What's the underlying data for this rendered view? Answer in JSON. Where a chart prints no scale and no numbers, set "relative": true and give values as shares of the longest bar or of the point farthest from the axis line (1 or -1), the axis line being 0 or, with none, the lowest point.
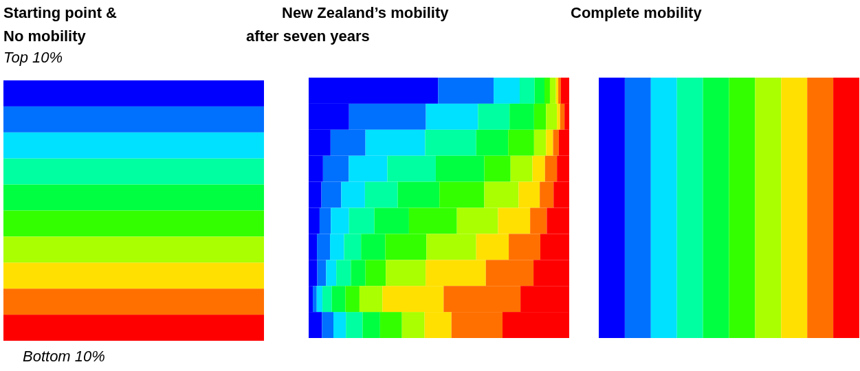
{
  "chart_data": [
    {
      "type": "bar",
      "title": "Starting point &\nNo mobility",
      "orientation": "horizontal",
      "stacked": true,
      "relative": true,
      "categories": [
        null,
        null,
        null,
        null,
        null,
        null,
        null,
        null,
        null,
        null
      ],
      "annotations": [
        "Top 10%",
        "Bottom 10%"
      ],
      "series": [
        {
          "color": "#0000ff",
          "values": [
            1,
            0,
            0,
            0,
            0,
            0,
            0,
            0,
            0,
            0
          ]
        },
        {
          "color": "#0070ff",
          "values": [
            0,
            1,
            0,
            0,
            0,
            0,
            0,
            0,
            0,
            0
          ]
        },
        {
          "color": "#00e0ff",
          "values": [
            0,
            0,
            1,
            0,
            0,
            0,
            0,
            0,
            0,
            0
          ]
        },
        {
          "color": "#00ffa0",
          "values": [
            0,
            0,
            0,
            1,
            0,
            0,
            0,
            0,
            0,
            0
          ]
        },
        {
          "color": "#00ff40",
          "values": [
            0,
            0,
            0,
            0,
            1,
            0,
            0,
            0,
            0,
            0
          ]
        },
        {
          "color": "#33ff00",
          "values": [
            0,
            0,
            0,
            0,
            0,
            1,
            0,
            0,
            0,
            0
          ]
        },
        {
          "color": "#aaff00",
          "values": [
            0,
            0,
            0,
            0,
            0,
            0,
            1,
            0,
            0,
            0
          ]
        },
        {
          "color": "#ffe000",
          "values": [
            0,
            0,
            0,
            0,
            0,
            0,
            0,
            1,
            0,
            0
          ]
        },
        {
          "color": "#ff7000",
          "values": [
            0,
            0,
            0,
            0,
            0,
            0,
            0,
            0,
            1,
            0
          ]
        },
        {
          "color": "#ff0000",
          "values": [
            0,
            0,
            0,
            0,
            0,
            0,
            0,
            0,
            0,
            1
          ]
        }
      ]
    },
    {
      "type": "bar",
      "title": "New Zealand’s mobility\nafter seven years",
      "orientation": "horizontal",
      "stacked": true,
      "relative": true,
      "categories": [
        null,
        null,
        null,
        null,
        null,
        null,
        null,
        null,
        null,
        null
      ],
      "series": [
        {
          "color": "#0000ff",
          "values": [
            0.497,
            0.155,
            0.084,
            0.055,
            0.049,
            0.042,
            0.032,
            0.033,
            0.016,
            0.051
          ]
        },
        {
          "color": "#0070ff",
          "values": [
            0.213,
            0.295,
            0.134,
            0.099,
            0.076,
            0.043,
            0.05,
            0.034,
            0.015,
            0.044
          ]
        },
        {
          "color": "#00e0ff",
          "values": [
            0.1,
            0.2,
            0.229,
            0.148,
            0.091,
            0.07,
            0.054,
            0.039,
            0.022,
            0.048
          ]
        },
        {
          "color": "#00ffa0",
          "values": [
            0.057,
            0.121,
            0.196,
            0.186,
            0.126,
            0.097,
            0.065,
            0.056,
            0.036,
            0.064
          ]
        },
        {
          "color": "#00ff40",
          "values": [
            0.038,
            0.094,
            0.123,
            0.186,
            0.16,
            0.133,
            0.093,
            0.056,
            0.052,
            0.067
          ]
        },
        {
          "color": "#33ff00",
          "values": [
            0.021,
            0.046,
            0.099,
            0.101,
            0.172,
            0.184,
            0.158,
            0.078,
            0.054,
            0.084
          ]
        },
        {
          "color": "#aaff00",
          "values": [
            0.023,
            0.042,
            0.046,
            0.084,
            0.132,
            0.158,
            0.191,
            0.153,
            0.088,
            0.087
          ]
        },
        {
          "color": "#ffe000",
          "values": [
            0.009,
            0.012,
            0.027,
            0.048,
            0.081,
            0.123,
            0.125,
            0.231,
            0.235,
            0.103
          ]
        },
        {
          "color": "#ff7000",
          "values": [
            0.01,
            0.017,
            0.022,
            0.046,
            0.053,
            0.064,
            0.121,
            0.183,
            0.295,
            0.196
          ]
        },
        {
          "color": "#ff0000",
          "values": [
            0.032,
            0.018,
            0.04,
            0.047,
            0.06,
            0.086,
            0.111,
            0.137,
            0.187,
            0.256
          ]
        }
      ]
    },
    {
      "type": "bar",
      "title": "Complete mobility",
      "orientation": "horizontal",
      "stacked": true,
      "relative": true,
      "categories": [
        null
      ],
      "series": [
        {
          "color": "#0000ff",
          "values": [
            0.1
          ]
        },
        {
          "color": "#0070ff",
          "values": [
            0.1
          ]
        },
        {
          "color": "#00e0ff",
          "values": [
            0.1
          ]
        },
        {
          "color": "#00ffa0",
          "values": [
            0.1
          ]
        },
        {
          "color": "#00ff40",
          "values": [
            0.1
          ]
        },
        {
          "color": "#33ff00",
          "values": [
            0.1
          ]
        },
        {
          "color": "#aaff00",
          "values": [
            0.1
          ]
        },
        {
          "color": "#ffe000",
          "values": [
            0.1
          ]
        },
        {
          "color": "#ff7000",
          "values": [
            0.1
          ]
        },
        {
          "color": "#ff0000",
          "values": [
            0.1
          ]
        }
      ]
    }
  ]
}
